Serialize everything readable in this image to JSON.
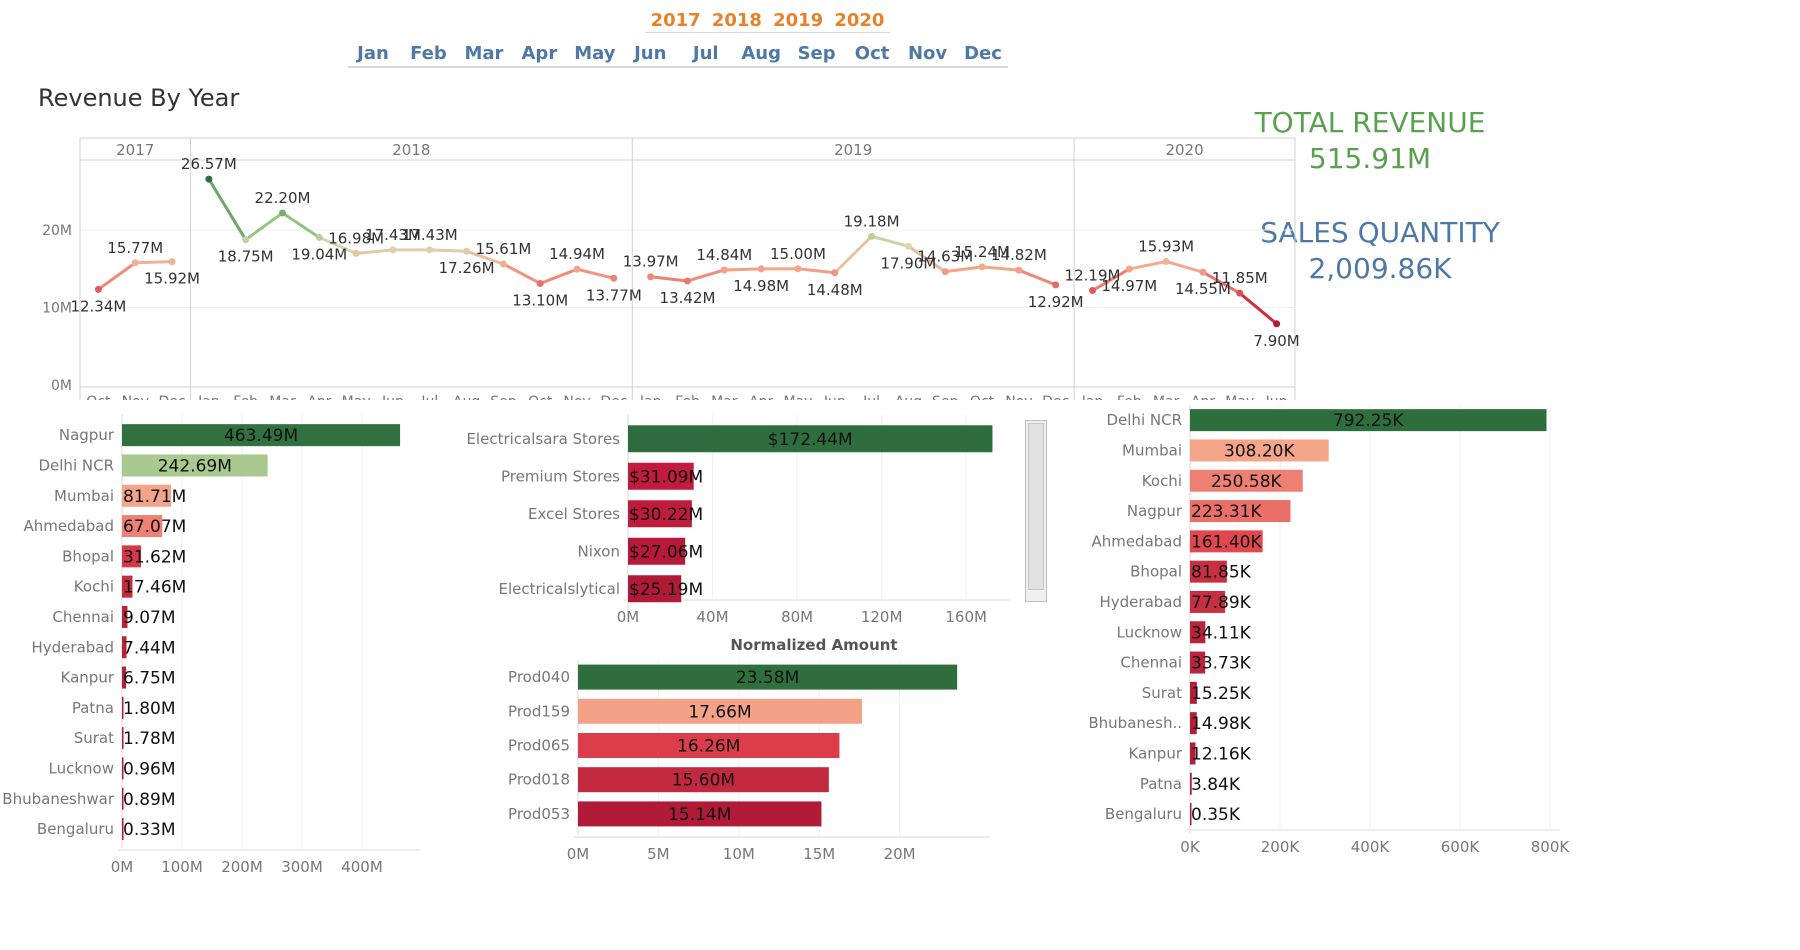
{
  "filters": {
    "years": [
      "2017",
      "2018",
      "2019",
      "2020"
    ],
    "months": [
      "Jan",
      "Feb",
      "Mar",
      "Apr",
      "May",
      "Jun",
      "Jul",
      "Aug",
      "Sep",
      "Oct",
      "Nov",
      "Dec"
    ]
  },
  "kpi": {
    "revenue_label": "TOTAL REVENUE",
    "revenue_value": "515.91M",
    "quantity_label": "SALES QUANTITY",
    "quantity_value": "2,009.86K"
  },
  "colors": {
    "green": "#2e6e3e",
    "light_green": "#7ab56e",
    "salmon": "#f08a70",
    "red": "#d9363e",
    "dark_red": "#b01a36",
    "kpi_revenue": "#59a14f",
    "kpi_quantity": "#4e79a7"
  },
  "chart_data": [
    {
      "type": "line",
      "title": "Revenue By Year",
      "year_panels": [
        "2017",
        "2018",
        "2019",
        "2020"
      ],
      "y_ticks": [
        "0M",
        "10M",
        "20M"
      ],
      "ylim": [
        0,
        28
      ],
      "points": [
        {
          "year": "2017",
          "month": "Oct",
          "value": 12.34,
          "label": "12.34M"
        },
        {
          "year": "2017",
          "month": "Nov",
          "value": 15.77,
          "label": "15.77M"
        },
        {
          "year": "2017",
          "month": "Dec",
          "value": 15.92,
          "label": "15.92M"
        },
        {
          "year": "2018",
          "month": "Jan",
          "value": 26.57,
          "label": "26.57M"
        },
        {
          "year": "2018",
          "month": "Feb",
          "value": 18.75,
          "label": "18.75M"
        },
        {
          "year": "2018",
          "month": "Mar",
          "value": 22.2,
          "label": "22.20M"
        },
        {
          "year": "2018",
          "month": "Apr",
          "value": 19.04,
          "label": "19.04M"
        },
        {
          "year": "2018",
          "month": "May",
          "value": 16.98,
          "label": "16.98M"
        },
        {
          "year": "2018",
          "month": "Jun",
          "value": 17.43,
          "label": "17.43M"
        },
        {
          "year": "2018",
          "month": "Jul",
          "value": 17.43,
          "label": "17.43M"
        },
        {
          "year": "2018",
          "month": "Aug",
          "value": 17.26,
          "label": "17.26M"
        },
        {
          "year": "2018",
          "month": "Sep",
          "value": 15.61,
          "label": "15.61M"
        },
        {
          "year": "2018",
          "month": "Oct",
          "value": 13.1,
          "label": "13.10M"
        },
        {
          "year": "2018",
          "month": "Nov",
          "value": 14.94,
          "label": "14.94M"
        },
        {
          "year": "2018",
          "month": "Dec",
          "value": 13.77,
          "label": "13.77M"
        },
        {
          "year": "2019",
          "month": "Jan",
          "value": 13.97,
          "label": "13.97M"
        },
        {
          "year": "2019",
          "month": "Feb",
          "value": 13.42,
          "label": "13.42M"
        },
        {
          "year": "2019",
          "month": "Mar",
          "value": 14.84,
          "label": "14.84M"
        },
        {
          "year": "2019",
          "month": "Apr",
          "value": 14.98,
          "label": "14.98M"
        },
        {
          "year": "2019",
          "month": "May",
          "value": 15.0,
          "label": "15.00M"
        },
        {
          "year": "2019",
          "month": "Jun",
          "value": 14.48,
          "label": "14.48M"
        },
        {
          "year": "2019",
          "month": "Jul",
          "value": 19.18,
          "label": "19.18M"
        },
        {
          "year": "2019",
          "month": "Aug",
          "value": 17.9,
          "label": "17.90M"
        },
        {
          "year": "2019",
          "month": "Sep",
          "value": 14.63,
          "label": "14.63M"
        },
        {
          "year": "2019",
          "month": "Oct",
          "value": 15.24,
          "label": "15.24M"
        },
        {
          "year": "2019",
          "month": "Nov",
          "value": 14.82,
          "label": "14.82M"
        },
        {
          "year": "2019",
          "month": "Dec",
          "value": 12.92,
          "label": "12.92M"
        },
        {
          "year": "2020",
          "month": "Jan",
          "value": 12.19,
          "label": "12.19M"
        },
        {
          "year": "2020",
          "month": "Feb",
          "value": 14.97,
          "label": "14.97M"
        },
        {
          "year": "2020",
          "month": "Mar",
          "value": 15.93,
          "label": "15.93M"
        },
        {
          "year": "2020",
          "month": "Apr",
          "value": 14.55,
          "label": "14.55M"
        },
        {
          "year": "2020",
          "month": "May",
          "value": 11.85,
          "label": "11.85M"
        },
        {
          "year": "2020",
          "month": "Jun",
          "value": 7.9,
          "label": "7.90M"
        }
      ]
    },
    {
      "type": "bar",
      "orientation": "horizontal",
      "categories": [
        "Nagpur",
        "Delhi NCR",
        "Mumbai",
        "Ahmedabad",
        "Bhopal",
        "Kochi",
        "Chennai",
        "Hyderabad",
        "Kanpur",
        "Patna",
        "Surat",
        "Lucknow",
        "Bhubaneshwar",
        "Bengaluru"
      ],
      "values": [
        463.49,
        242.69,
        81.71,
        67.07,
        31.62,
        17.46,
        9.07,
        7.44,
        6.75,
        1.8,
        1.78,
        0.96,
        0.89,
        0.33
      ],
      "labels": [
        "463.49M",
        "242.69M",
        "81.71M",
        "67.07M",
        "31.62M",
        "17.46M",
        "9.07M",
        "7.44M",
        "6.75M",
        "1.80M",
        "1.78M",
        "0.96M",
        "0.89M",
        "0.33M"
      ],
      "x_ticks": [
        "0M",
        "100M",
        "200M",
        "300M",
        "400M"
      ],
      "xlim": [
        0,
        480
      ]
    },
    {
      "type": "bar",
      "orientation": "horizontal",
      "categories": [
        "Electricalsara Stores",
        "Premium Stores",
        "Excel Stores",
        "Nixon",
        "Electricalslytical"
      ],
      "values": [
        172.44,
        31.09,
        30.22,
        27.06,
        25.19
      ],
      "labels": [
        "$172.44M",
        "$31.09M",
        "$30.22M",
        "$27.06M",
        "$25.19M"
      ],
      "x_ticks": [
        "0M",
        "40M",
        "80M",
        "120M",
        "160M"
      ],
      "xlabel": "Normalized Amount",
      "xlim": [
        0,
        176
      ]
    },
    {
      "type": "bar",
      "orientation": "horizontal",
      "categories": [
        "Prod040",
        "Prod159",
        "Prod065",
        "Prod018",
        "Prod053"
      ],
      "values": [
        23.58,
        17.66,
        16.26,
        15.6,
        15.14
      ],
      "labels": [
        "23.58M",
        "17.66M",
        "16.26M",
        "15.60M",
        "15.14M"
      ],
      "x_ticks": [
        "0M",
        "5M",
        "10M",
        "15M",
        "20M"
      ],
      "xlim": [
        0,
        25
      ]
    },
    {
      "type": "bar",
      "orientation": "horizontal",
      "categories": [
        "Delhi NCR",
        "Mumbai",
        "Kochi",
        "Nagpur",
        "Ahmedabad",
        "Bhopal",
        "Hyderabad",
        "Lucknow",
        "Chennai",
        "Surat",
        "Bhubanesh..",
        "Kanpur",
        "Patna",
        "Bengaluru"
      ],
      "values": [
        792.25,
        308.2,
        250.58,
        223.31,
        161.4,
        81.85,
        77.89,
        34.11,
        33.73,
        15.25,
        14.98,
        12.16,
        3.84,
        0.35
      ],
      "labels": [
        "792.25K",
        "308.20K",
        "250.58K",
        "223.31K",
        "161.40K",
        "81.85K",
        "77.89K",
        "34.11K",
        "33.73K",
        "15.25K",
        "14.98K",
        "12.16K",
        "3.84K",
        "0.35K"
      ],
      "x_ticks": [
        "0K",
        "200K",
        "400K",
        "600K",
        "800K"
      ],
      "xlim": [
        0,
        800
      ]
    }
  ]
}
